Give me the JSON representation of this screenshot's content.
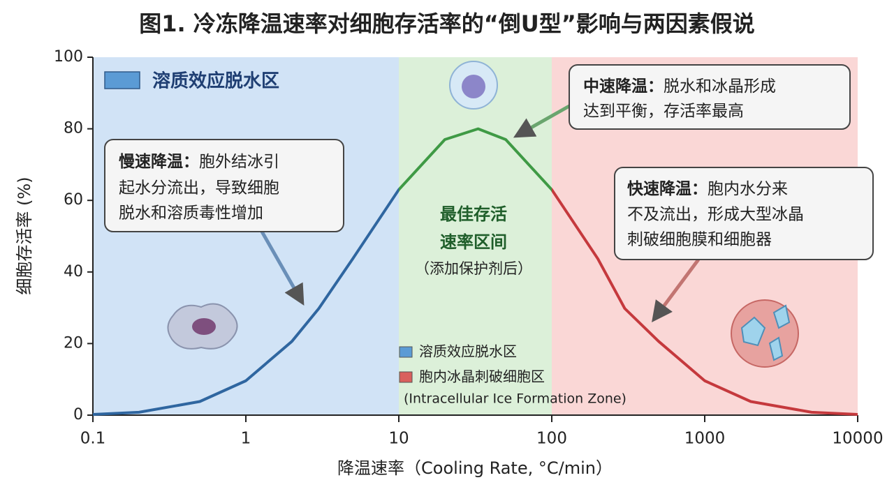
{
  "chart_data": {
    "type": "line",
    "title": "图1. 冷冻降温速率对细胞存活率的“倒U型”影响与两因素假说",
    "x_label": "降温速率（Cooling Rate, °C/min）",
    "y_label": "细胞存活率 (%)",
    "x": [
      0.1,
      0.2,
      0.5,
      1,
      2,
      3,
      5,
      10,
      20,
      33,
      50,
      100,
      200,
      300,
      500,
      1000,
      2000,
      5000,
      10000
    ],
    "values": [
      0.2,
      0.8,
      3.8,
      9.6,
      20.6,
      29.8,
      43.7,
      63,
      77,
      80,
      77,
      63,
      43.7,
      29.8,
      20.6,
      9.6,
      3.8,
      0.8,
      0.2
    ],
    "xscale": "log",
    "xlim": [
      0.1,
      10000
    ],
    "xticks": [
      0.1,
      1,
      10,
      100,
      1000,
      10000
    ],
    "ylim": [
      0,
      100
    ],
    "yticks": [
      0,
      20,
      40,
      60,
      80,
      100
    ],
    "grid": false,
    "zones": [
      {
        "from": 0.1,
        "to": 10,
        "color": "#2f66a0",
        "fill": "#c9def4"
      },
      {
        "from": 10,
        "to": 100,
        "color": "#3f9a45",
        "fill": "#d6edd2"
      },
      {
        "from": 100,
        "to": 10000,
        "color": "#c5393d",
        "fill": "#f9d0cf"
      }
    ],
    "zone_label": {
      "label": "溶质效应脱水区",
      "color": "#5b9bd5"
    },
    "legend": {
      "corner": "bottom-center",
      "items": [
        {
          "label": "溶质效应脱水区",
          "color": "#5b9bd5"
        },
        {
          "label": "胞内冰晶刺破细胞区",
          "sublabel": "(Intracellular Ice Formation Zone)",
          "color": "#d9605d"
        }
      ]
    },
    "annotations": [
      {
        "title": "慢速降温：",
        "lines": [
          "胞外结冰引",
          "起水分流出，导致细胞",
          "脱水和溶质毒性增加"
        ]
      },
      {
        "title": "中速降温：",
        "lines": [
          "脱水和冰晶形成",
          "达到平衡，存活率最高"
        ]
      },
      {
        "title": "快速降温：",
        "lines": [
          "胞内水分来",
          "不及流出，形成大型冰晶",
          "刺破细胞膜和细胞器"
        ]
      }
    ],
    "center_label": {
      "lines": [
        "最佳存活",
        "速率区间"
      ],
      "note": "（添加保护剂后）"
    }
  }
}
